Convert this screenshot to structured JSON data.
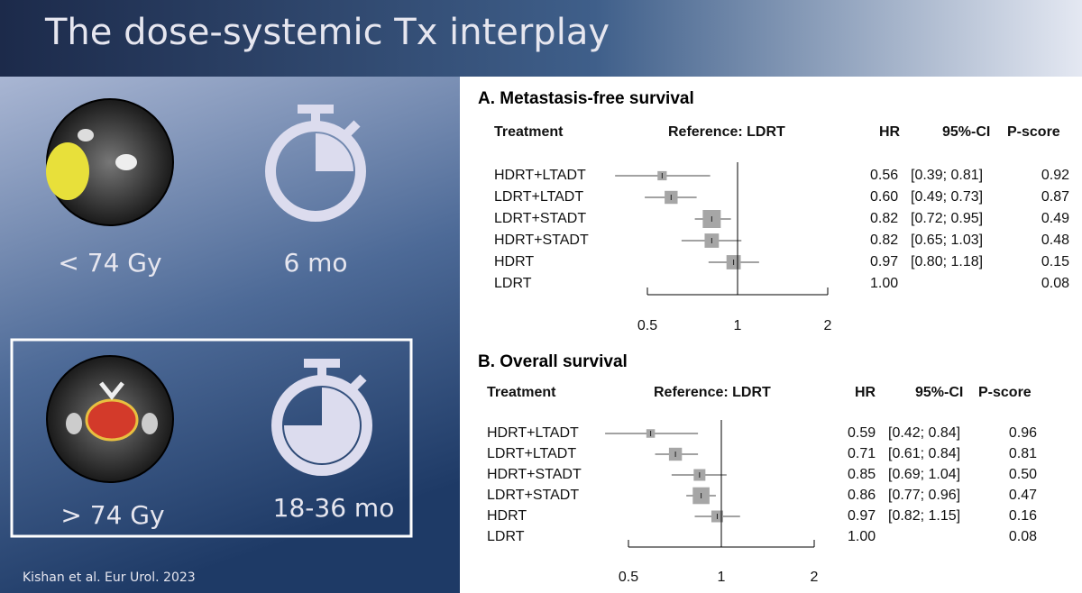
{
  "slide": {
    "title": "The dose-systemic Tx interplay",
    "dose_low": "< 74 Gy",
    "time_low": "6 mo",
    "dose_high": "> 74 Gy",
    "time_high": "18-36 mo",
    "citation": "Kishan et al. Eur Urol. 2023"
  },
  "chart_data": [
    {
      "type": "forest",
      "title": "A. Metastasis-free survival",
      "headers": {
        "treatment": "Treatment",
        "reference": "Reference: LDRT",
        "hr": "HR",
        "ci": "95%-CI",
        "p_score": "P-score"
      },
      "categories": [
        "HDRT+LTADT",
        "LDRT+LTADT",
        "LDRT+STADT",
        "HDRT+STADT",
        "HDRT",
        "LDRT"
      ],
      "values": [
        0.56,
        0.6,
        0.82,
        0.82,
        0.97,
        1
      ],
      "value_labels": [
        "0.56",
        "0.60",
        "0.82",
        "0.82",
        "0.97",
        "1.00"
      ],
      "lower": [
        0.39,
        0.49,
        0.72,
        0.65,
        0.8,
        null
      ],
      "upper": [
        0.81,
        0.73,
        0.95,
        1.03,
        1.18,
        null
      ],
      "ci_labels": [
        "[0.39; 0.81]",
        "[0.49; 0.73]",
        "[0.72; 0.95]",
        "[0.65; 1.03]",
        "[0.80; 1.18]",
        null
      ],
      "p_scores": [
        "0.92",
        "0.87",
        "0.49",
        "0.48",
        "0.15",
        "0.08"
      ],
      "weights": [
        0.3,
        0.6,
        1,
        0.7,
        0.7,
        null
      ],
      "xlim": [
        0.5,
        2
      ],
      "xticks": [
        0.5,
        1,
        2
      ],
      "log_scale": true,
      "color": "#a6a6a6"
    },
    {
      "type": "forest",
      "title": "B. Overall survival",
      "headers": {
        "treatment": "Treatment",
        "reference": "Reference: LDRT",
        "hr": "HR",
        "ci": "95%-CI",
        "p_score": "P-score"
      },
      "categories": [
        "HDRT+LTADT",
        "LDRT+LTADT",
        "HDRT+STADT",
        "LDRT+STADT",
        "HDRT",
        "LDRT"
      ],
      "values": [
        0.59,
        0.71,
        0.85,
        0.86,
        0.97,
        1
      ],
      "value_labels": [
        "0.59",
        "0.71",
        "0.85",
        "0.86",
        "0.97",
        "1.00"
      ],
      "lower": [
        0.42,
        0.61,
        0.69,
        0.77,
        0.82,
        null
      ],
      "upper": [
        0.84,
        0.84,
        1.04,
        0.96,
        1.15,
        null
      ],
      "ci_labels": [
        "[0.42; 0.84]",
        "[0.61; 0.84]",
        "[0.69; 1.04]",
        "[0.77; 0.96]",
        "[0.82; 1.15]",
        null
      ],
      "p_scores": [
        "0.96",
        "0.81",
        "0.50",
        "0.47",
        "0.16",
        "0.08"
      ],
      "weights": [
        0.25,
        0.6,
        0.5,
        0.9,
        0.5,
        null
      ],
      "xlim": [
        0.5,
        2
      ],
      "xticks": [
        0.5,
        1,
        2
      ],
      "log_scale": true,
      "color": "#a6a6a6"
    }
  ]
}
